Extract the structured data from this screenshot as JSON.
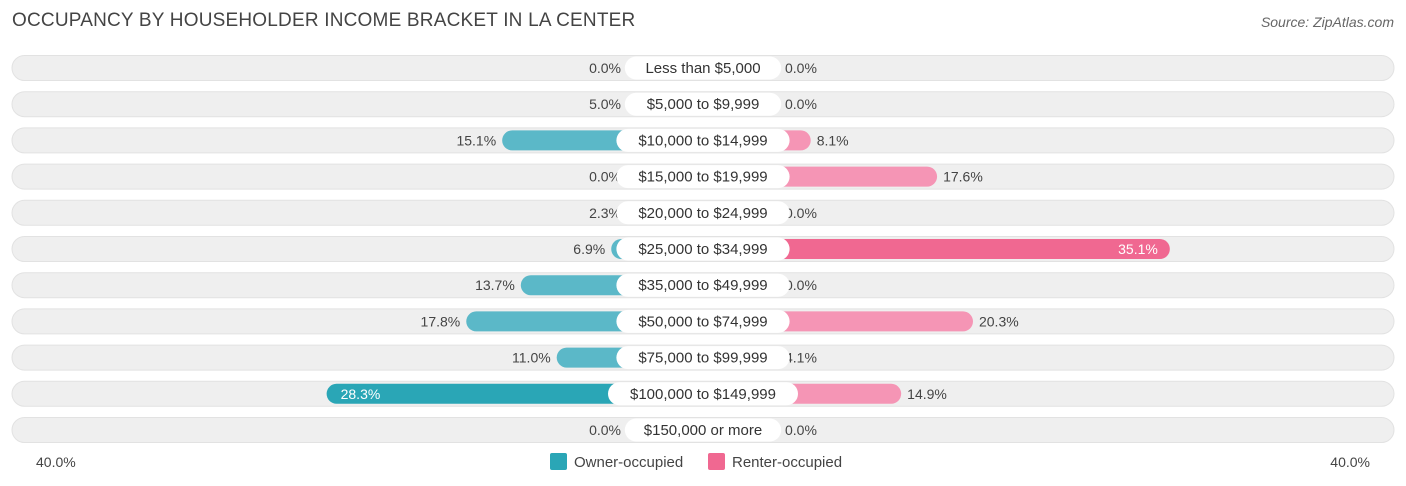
{
  "title": "OCCUPANCY BY HOUSEHOLDER INCOME BRACKET IN LA CENTER",
  "source": "Source: ZipAtlas.com",
  "colors": {
    "owner": "#5bb8c8",
    "owner_strong": "#2aa6b6",
    "renter": "#f595b5",
    "renter_strong": "#f06891",
    "track": "#efefef"
  },
  "chart_data": {
    "type": "bar",
    "orientation": "horizontal-diverging",
    "categories": [
      "Less than $5,000",
      "$5,000 to $9,999",
      "$10,000 to $14,999",
      "$15,000 to $19,999",
      "$20,000 to $24,999",
      "$25,000 to $34,999",
      "$35,000 to $49,999",
      "$50,000 to $74,999",
      "$75,000 to $99,999",
      "$100,000 to $149,999",
      "$150,000 or more"
    ],
    "series": [
      {
        "name": "Owner-occupied",
        "values": [
          0.0,
          5.0,
          15.1,
          0.0,
          2.3,
          6.9,
          13.7,
          17.8,
          11.0,
          28.3,
          0.0
        ],
        "labels": [
          "0.0%",
          "5.0%",
          "15.1%",
          "0.0%",
          "2.3%",
          "6.9%",
          "13.7%",
          "17.8%",
          "11.0%",
          "28.3%",
          "0.0%"
        ]
      },
      {
        "name": "Renter-occupied",
        "values": [
          0.0,
          0.0,
          8.1,
          17.6,
          0.0,
          35.1,
          0.0,
          20.3,
          4.1,
          14.9,
          0.0
        ],
        "labels": [
          "0.0%",
          "0.0%",
          "8.1%",
          "17.6%",
          "0.0%",
          "35.1%",
          "0.0%",
          "20.3%",
          "4.1%",
          "14.9%",
          "0.0%"
        ]
      }
    ],
    "xlim": [
      -40,
      40
    ],
    "axis_labels": {
      "left": "40.0%",
      "right": "40.0%"
    },
    "legend": {
      "position": "bottom-center",
      "entries": [
        "Owner-occupied",
        "Renter-occupied"
      ]
    }
  }
}
